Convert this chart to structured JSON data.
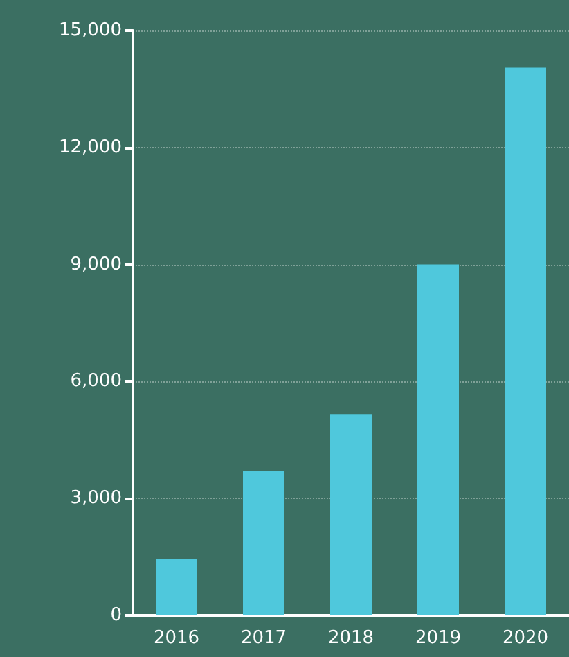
{
  "chart_data": {
    "type": "bar",
    "categories": [
      "2016",
      "2017",
      "2018",
      "2019",
      "2020"
    ],
    "values": [
      1450,
      3700,
      5150,
      9000,
      14050
    ],
    "color": "#4fc8dc",
    "ylim": [
      0,
      15000
    ],
    "yticks": [
      {
        "value": 0,
        "label": "0"
      },
      {
        "value": 3000,
        "label": "3,000"
      },
      {
        "value": 6000,
        "label": "6,000"
      },
      {
        "value": 9000,
        "label": "9,000"
      },
      {
        "value": 12000,
        "label": "12,000"
      },
      {
        "value": 15000,
        "label": "15,000"
      }
    ],
    "grid": "y"
  }
}
